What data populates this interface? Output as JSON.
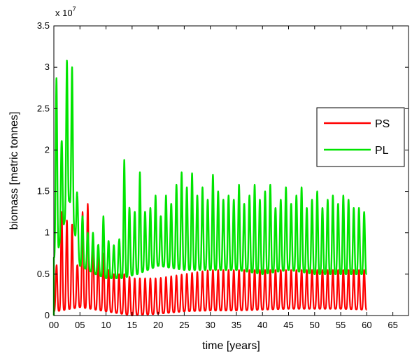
{
  "chart_data": {
    "type": "line",
    "title": "",
    "xlabel": "time [years]",
    "ylabel": "biomass [metric tonnes]",
    "exponent_label": "x 10",
    "exponent_power": "7",
    "xlim": [
      0,
      68
    ],
    "ylim": [
      0,
      3.5
    ],
    "xticks": [
      0,
      5,
      10,
      15,
      20,
      25,
      30,
      35,
      40,
      45,
      50,
      55,
      60,
      65
    ],
    "xtick_labels": [
      "00",
      "05",
      "10",
      "15",
      "20",
      "25",
      "30",
      "35",
      "40",
      "45",
      "50",
      "55",
      "60",
      "65"
    ],
    "yticks": [
      0,
      0.5,
      1,
      1.5,
      2,
      2.5,
      3,
      3.5
    ],
    "ytick_labels": [
      "0",
      "0.5",
      "1",
      "1.5",
      "2",
      "2.5",
      "3",
      "3.5"
    ],
    "legend_position": "right",
    "series": [
      {
        "name": "PS",
        "color": "#ff0000",
        "period": 1,
        "x_end": 60,
        "peaks": [
          [
            0.5,
            0.6
          ],
          [
            1.5,
            1.25
          ],
          [
            2.5,
            1.15
          ],
          [
            3.5,
            1.1
          ],
          [
            4.5,
            0.6
          ],
          [
            5.5,
            1.25
          ],
          [
            6.5,
            1.35
          ],
          [
            7.5,
            0.9
          ],
          [
            8.5,
            0.7
          ],
          [
            9.5,
            0.75
          ],
          [
            10.5,
            0.55
          ],
          [
            11.5,
            0.5
          ],
          [
            12.5,
            0.5
          ],
          [
            13.5,
            0.5
          ],
          [
            15,
            0.45
          ],
          [
            20,
            0.45
          ],
          [
            25,
            0.5
          ],
          [
            30,
            0.55
          ],
          [
            35,
            0.55
          ],
          [
            40,
            0.55
          ],
          [
            45,
            0.55
          ],
          [
            50,
            0.55
          ],
          [
            55,
            0.55
          ],
          [
            59.5,
            0.55
          ]
        ],
        "troughs": [
          [
            0.5,
            0.05
          ],
          [
            5,
            0.1
          ],
          [
            10,
            0.05
          ],
          [
            15,
            0.0
          ],
          [
            20,
            0.02
          ],
          [
            25,
            0.05
          ],
          [
            30,
            0.06
          ],
          [
            35,
            0.06
          ],
          [
            40,
            0.07
          ],
          [
            45,
            0.08
          ],
          [
            50,
            0.08
          ],
          [
            55,
            0.08
          ],
          [
            59.5,
            0.07
          ]
        ]
      },
      {
        "name": "PL",
        "color": "#00e400",
        "period": 1,
        "x_end": 60,
        "peaks": [
          [
            0.5,
            2.87
          ],
          [
            1.5,
            2.1
          ],
          [
            2.5,
            3.08
          ],
          [
            3.5,
            3.0
          ],
          [
            4.5,
            1.45
          ],
          [
            5.5,
            1.2
          ],
          [
            6.5,
            1.0
          ],
          [
            7.5,
            1.0
          ],
          [
            8.5,
            0.85
          ],
          [
            9.5,
            1.2
          ],
          [
            10.5,
            0.9
          ],
          [
            11.5,
            0.85
          ],
          [
            12.5,
            0.9
          ],
          [
            13.5,
            1.88
          ],
          [
            14.5,
            1.3
          ],
          [
            15.5,
            1.25
          ],
          [
            16.5,
            1.73
          ],
          [
            17.5,
            1.25
          ],
          [
            18.5,
            1.3
          ],
          [
            19.5,
            1.45
          ],
          [
            20.5,
            1.2
          ],
          [
            21.5,
            1.45
          ],
          [
            22.5,
            1.35
          ],
          [
            23.5,
            1.58
          ],
          [
            24.5,
            1.73
          ],
          [
            25.5,
            1.55
          ],
          [
            26.5,
            1.72
          ],
          [
            27.5,
            1.45
          ],
          [
            28.5,
            1.55
          ],
          [
            29.5,
            1.4
          ],
          [
            30.5,
            1.7
          ],
          [
            31.5,
            1.5
          ],
          [
            32.5,
            1.4
          ],
          [
            33.5,
            1.45
          ],
          [
            34.5,
            1.4
          ],
          [
            35.5,
            1.58
          ],
          [
            36.5,
            1.35
          ],
          [
            37.5,
            1.45
          ],
          [
            38.5,
            1.58
          ],
          [
            39.5,
            1.4
          ],
          [
            40.5,
            1.5
          ],
          [
            41.5,
            1.58
          ],
          [
            42.5,
            1.3
          ],
          [
            43.5,
            1.4
          ],
          [
            44.5,
            1.55
          ],
          [
            45.5,
            1.35
          ],
          [
            46.5,
            1.45
          ],
          [
            47.5,
            1.55
          ],
          [
            48.5,
            1.3
          ],
          [
            49.5,
            1.4
          ],
          [
            50.5,
            1.5
          ],
          [
            51.5,
            1.3
          ],
          [
            52.5,
            1.4
          ],
          [
            53.5,
            1.45
          ],
          [
            54.5,
            1.35
          ],
          [
            55.5,
            1.45
          ],
          [
            56.5,
            1.4
          ],
          [
            57.5,
            1.3
          ],
          [
            58.5,
            1.3
          ],
          [
            59.5,
            1.25
          ]
        ],
        "troughs": [
          [
            0.5,
            0.7
          ],
          [
            3,
            1.4
          ],
          [
            5,
            0.6
          ],
          [
            8,
            0.5
          ],
          [
            10,
            0.45
          ],
          [
            13,
            0.45
          ],
          [
            16,
            0.5
          ],
          [
            20,
            0.6
          ],
          [
            25,
            0.55
          ],
          [
            30,
            0.55
          ],
          [
            35,
            0.55
          ],
          [
            40,
            0.5
          ],
          [
            45,
            0.55
          ],
          [
            50,
            0.5
          ],
          [
            55,
            0.5
          ],
          [
            59.5,
            0.5
          ]
        ]
      }
    ]
  }
}
